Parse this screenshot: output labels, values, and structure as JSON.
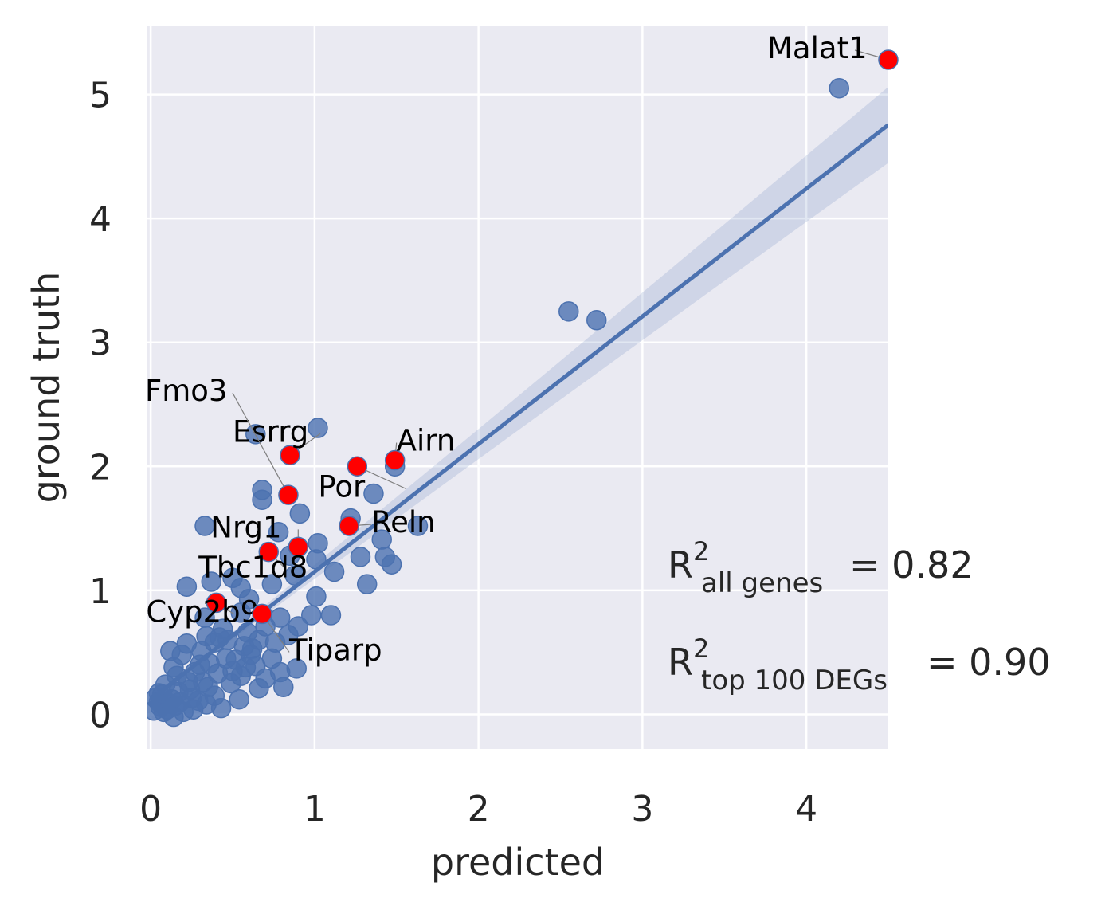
{
  "chart_data": {
    "type": "scatter",
    "xlabel": "predicted",
    "ylabel": "ground truth",
    "xlim": [
      -0.02,
      4.5
    ],
    "ylim": [
      -0.28,
      5.55
    ],
    "xticks": [
      "0",
      "1",
      "2",
      "3",
      "4"
    ],
    "yticks": [
      "0",
      "1",
      "2",
      "3",
      "4",
      "5"
    ],
    "grid": true,
    "background": "#eaeaf2",
    "point_color": "#4c72b0",
    "highlight_color": "#ff0000",
    "regression": {
      "slope": 1.03,
      "intercept": 0.12,
      "ci_color": "#4c72b0"
    },
    "points": [
      [
        4.2,
        5.05
      ],
      [
        2.55,
        3.25
      ],
      [
        2.72,
        3.18
      ],
      [
        1.02,
        2.31
      ],
      [
        0.64,
        2.26
      ],
      [
        0.68,
        1.81
      ],
      [
        0.68,
        1.73
      ],
      [
        0.91,
        1.62
      ],
      [
        1.36,
        1.78
      ],
      [
        1.49,
        2.0
      ],
      [
        1.22,
        1.58
      ],
      [
        1.63,
        1.52
      ],
      [
        0.33,
        1.52
      ],
      [
        0.78,
        1.47
      ],
      [
        1.02,
        1.38
      ],
      [
        1.41,
        1.41
      ],
      [
        1.43,
        1.27
      ],
      [
        1.47,
        1.21
      ],
      [
        1.28,
        1.27
      ],
      [
        1.12,
        1.15
      ],
      [
        1.32,
        1.05
      ],
      [
        0.85,
        1.28
      ],
      [
        1.01,
        1.25
      ],
      [
        0.88,
        1.12
      ],
      [
        0.22,
        1.03
      ],
      [
        0.37,
        1.07
      ],
      [
        0.55,
        1.02
      ],
      [
        0.6,
        0.93
      ],
      [
        0.74,
        1.05
      ],
      [
        0.5,
        1.1
      ],
      [
        1.01,
        0.95
      ],
      [
        0.98,
        0.8
      ],
      [
        1.1,
        0.8
      ],
      [
        0.79,
        0.78
      ],
      [
        0.9,
        0.71
      ],
      [
        0.55,
        0.82
      ],
      [
        0.33,
        0.78
      ],
      [
        0.42,
        0.62
      ],
      [
        0.66,
        0.6
      ],
      [
        0.84,
        0.64
      ],
      [
        0.31,
        0.51
      ],
      [
        0.74,
        0.45
      ],
      [
        0.58,
        0.38
      ],
      [
        0.46,
        0.45
      ],
      [
        0.39,
        0.58
      ],
      [
        0.27,
        0.34
      ],
      [
        0.7,
        0.29
      ],
      [
        0.66,
        0.21
      ],
      [
        0.79,
        0.34
      ],
      [
        0.89,
        0.37
      ],
      [
        0.81,
        0.22
      ],
      [
        0.49,
        0.25
      ],
      [
        0.19,
        0.48
      ],
      [
        0.16,
        0.31
      ],
      [
        0.35,
        0.22
      ],
      [
        0.54,
        0.12
      ],
      [
        0.43,
        0.05
      ],
      [
        0.5,
        0.35
      ],
      [
        0.29,
        0.11
      ],
      [
        0.09,
        0.24
      ],
      [
        0.13,
        0.12
      ],
      [
        0.06,
        0.06
      ],
      [
        0.2,
        0.02
      ],
      [
        0.34,
        0.08
      ],
      [
        0.24,
        0.2
      ],
      [
        0.17,
        0.18
      ],
      [
        0.11,
        0.09
      ],
      [
        0.03,
        0.13
      ],
      [
        0.08,
        0.02
      ],
      [
        0.14,
        -0.02
      ],
      [
        0.02,
        0.03
      ],
      [
        0.05,
        0.17
      ],
      [
        0.26,
        0.04
      ],
      [
        0.39,
        0.15
      ],
      [
        0.61,
        0.48
      ],
      [
        0.47,
        0.6
      ],
      [
        0.44,
        0.69
      ],
      [
        0.3,
        0.4
      ],
      [
        0.22,
        0.57
      ],
      [
        0.57,
        0.55
      ],
      [
        0.7,
        0.71
      ],
      [
        0.34,
        0.63
      ],
      [
        0.23,
        0.26
      ],
      [
        0.14,
        0.38
      ],
      [
        0.36,
        0.41
      ],
      [
        0.59,
        0.66
      ],
      [
        0.64,
        0.39
      ],
      [
        0.76,
        0.58
      ],
      [
        0.55,
        0.31
      ],
      [
        0.12,
        0.51
      ],
      [
        0.05,
        0.1
      ],
      [
        0.1,
        0.04
      ],
      [
        0.07,
        0.16
      ],
      [
        0.15,
        0.07
      ],
      [
        0.18,
        0.1
      ],
      [
        0.25,
        0.13
      ],
      [
        0.32,
        0.26
      ],
      [
        0.41,
        0.33
      ],
      [
        0.52,
        0.44
      ],
      [
        0.62,
        0.53
      ]
    ],
    "highlighted": [
      {
        "label": "Malat1",
        "x": 4.5,
        "y": 5.28
      },
      {
        "label": "Airn",
        "x": 1.49,
        "y": 2.05
      },
      {
        "label": "Por",
        "x": 1.26,
        "y": 2.0
      },
      {
        "label": "Esrrg",
        "x": 0.85,
        "y": 2.09
      },
      {
        "label": "Fmo3",
        "x": 0.84,
        "y": 1.77
      },
      {
        "label": "Reln",
        "x": 1.21,
        "y": 1.52
      },
      {
        "label": "Nrg1",
        "x": 0.9,
        "y": 1.35
      },
      {
        "label": "Tbc1d8",
        "x": 0.72,
        "y": 1.31
      },
      {
        "label": "Cyp2b9",
        "x": 0.4,
        "y": 0.9
      },
      {
        "label": "Tiparp",
        "x": 0.68,
        "y": 0.81
      }
    ],
    "annotations": [
      {
        "base": "R",
        "sup": "2",
        "sub": "all genes",
        "text": "= 0.82"
      },
      {
        "base": "R",
        "sup": "2",
        "sub": "top 100 DEGs",
        "text": "= 0.90"
      }
    ]
  }
}
